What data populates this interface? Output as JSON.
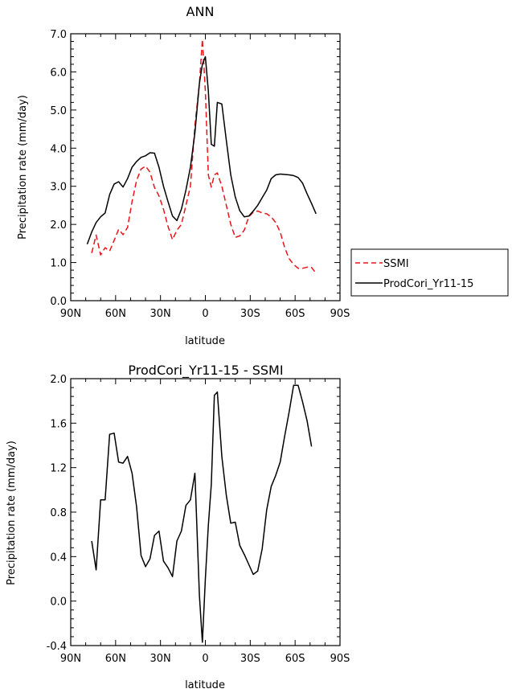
{
  "chart_data": [
    {
      "type": "line",
      "title": "ANN",
      "xlabel": "latitude",
      "ylabel": "Precipitation rate (mm/day)",
      "xlim": [
        90,
        -90
      ],
      "ylim": [
        0,
        7
      ],
      "x_ticks": [
        90,
        60,
        30,
        0,
        -30,
        -60,
        -90
      ],
      "x_tick_labels": [
        "90N",
        "60N",
        "30N",
        "0",
        "30S",
        "60S",
        "90S"
      ],
      "y_ticks": [
        0,
        1,
        2,
        3,
        4,
        5,
        6,
        7
      ],
      "y_tick_labels": [
        "0.0",
        "1.0",
        "2.0",
        "3.0",
        "4.0",
        "5.0",
        "6.0",
        "7.0"
      ],
      "grid": false,
      "legend": "right",
      "series": [
        {
          "name": "SSMI",
          "color": "#e8141a",
          "dash": "dashed",
          "points": [
            [
              76,
              1.25
            ],
            [
              73,
              1.72
            ],
            [
              70,
              1.2
            ],
            [
              67,
              1.39
            ],
            [
              64,
              1.3
            ],
            [
              61,
              1.58
            ],
            [
              58,
              1.87
            ],
            [
              55,
              1.73
            ],
            [
              52,
              1.92
            ],
            [
              49,
              2.6
            ],
            [
              46,
              3.15
            ],
            [
              43,
              3.45
            ],
            [
              40,
              3.53
            ],
            [
              37,
              3.37
            ],
            [
              34,
              2.97
            ],
            [
              31,
              2.75
            ],
            [
              28,
              2.4
            ],
            [
              25,
              1.95
            ],
            [
              22,
              1.6
            ],
            [
              19,
              1.85
            ],
            [
              16,
              2.0
            ],
            [
              13,
              2.5
            ],
            [
              10,
              3.0
            ],
            [
              7,
              4.6
            ],
            [
              4,
              5.7
            ],
            [
              2,
              6.85
            ],
            [
              0,
              5.5
            ],
            [
              -2,
              3.3
            ],
            [
              -4,
              2.98
            ],
            [
              -6,
              3.3
            ],
            [
              -8,
              3.35
            ],
            [
              -11,
              3.0
            ],
            [
              -14,
              2.5
            ],
            [
              -17,
              2.0
            ],
            [
              -20,
              1.66
            ],
            [
              -23,
              1.7
            ],
            [
              -26,
              1.85
            ],
            [
              -29,
              2.2
            ],
            [
              -32,
              2.32
            ],
            [
              -35,
              2.35
            ],
            [
              -38,
              2.3
            ],
            [
              -41,
              2.28
            ],
            [
              -44,
              2.2
            ],
            [
              -47,
              2.05
            ],
            [
              -50,
              1.8
            ],
            [
              -53,
              1.4
            ],
            [
              -56,
              1.1
            ],
            [
              -59,
              0.95
            ],
            [
              -62,
              0.85
            ],
            [
              -65,
              0.85
            ],
            [
              -68,
              0.88
            ],
            [
              -71,
              0.87
            ],
            [
              -74,
              0.72
            ]
          ]
        },
        {
          "name": "ProdCori_Yr11-15",
          "color": "#000000",
          "dash": "solid",
          "points": [
            [
              79,
              1.48
            ],
            [
              76,
              1.8
            ],
            [
              73,
              2.05
            ],
            [
              70,
              2.2
            ],
            [
              67,
              2.3
            ],
            [
              64,
              2.78
            ],
            [
              61,
              3.06
            ],
            [
              58,
              3.12
            ],
            [
              55,
              2.98
            ],
            [
              52,
              3.2
            ],
            [
              49,
              3.5
            ],
            [
              46,
              3.65
            ],
            [
              43,
              3.76
            ],
            [
              40,
              3.8
            ],
            [
              37,
              3.88
            ],
            [
              34,
              3.87
            ],
            [
              31,
              3.5
            ],
            [
              28,
              3.0
            ],
            [
              25,
              2.6
            ],
            [
              22,
              2.22
            ],
            [
              19,
              2.1
            ],
            [
              16,
              2.4
            ],
            [
              13,
              2.9
            ],
            [
              10,
              3.5
            ],
            [
              7,
              4.4
            ],
            [
              4,
              5.7
            ],
            [
              2,
              6.2
            ],
            [
              0,
              6.4
            ],
            [
              -2,
              5.5
            ],
            [
              -4,
              4.1
            ],
            [
              -6,
              4.05
            ],
            [
              -8,
              5.2
            ],
            [
              -11,
              5.16
            ],
            [
              -14,
              4.2
            ],
            [
              -17,
              3.3
            ],
            [
              -20,
              2.72
            ],
            [
              -23,
              2.36
            ],
            [
              -26,
              2.2
            ],
            [
              -29,
              2.22
            ],
            [
              -32,
              2.35
            ],
            [
              -35,
              2.5
            ],
            [
              -38,
              2.7
            ],
            [
              -41,
              2.9
            ],
            [
              -44,
              3.2
            ],
            [
              -47,
              3.3
            ],
            [
              -50,
              3.32
            ],
            [
              -53,
              3.31
            ],
            [
              -56,
              3.3
            ],
            [
              -59,
              3.28
            ],
            [
              -62,
              3.23
            ],
            [
              -65,
              3.08
            ],
            [
              -68,
              2.8
            ],
            [
              -71,
              2.55
            ],
            [
              -74,
              2.28
            ]
          ]
        }
      ]
    },
    {
      "type": "line",
      "title": "ProdCori_Yr11-15 - SSMI",
      "xlabel": "latitude",
      "ylabel": "Precipitation rate (mm/day)",
      "xlim": [
        90,
        -90
      ],
      "ylim": [
        -0.4,
        2.0
      ],
      "x_ticks": [
        90,
        60,
        30,
        0,
        -30,
        -60,
        -90
      ],
      "x_tick_labels": [
        "90N",
        "60N",
        "30N",
        "0",
        "30S",
        "60S",
        "90S"
      ],
      "y_ticks": [
        -0.4,
        0.0,
        0.4,
        0.8,
        1.2,
        1.6,
        2.0
      ],
      "y_tick_labels": [
        "-0.4",
        "0.0",
        "0.4",
        "0.8",
        "1.2",
        "1.6",
        "2.0"
      ],
      "grid": false,
      "series": [
        {
          "color": "#000000",
          "dash": "solid",
          "points": [
            [
              76,
              0.54
            ],
            [
              73,
              0.28
            ],
            [
              70,
              0.91
            ],
            [
              67,
              0.91
            ],
            [
              64,
              1.5
            ],
            [
              61,
              1.51
            ],
            [
              58,
              1.25
            ],
            [
              55,
              1.24
            ],
            [
              52,
              1.3
            ],
            [
              49,
              1.15
            ],
            [
              46,
              0.85
            ],
            [
              43,
              0.41
            ],
            [
              40,
              0.31
            ],
            [
              37,
              0.38
            ],
            [
              34,
              0.59
            ],
            [
              31,
              0.63
            ],
            [
              28,
              0.36
            ],
            [
              25,
              0.3
            ],
            [
              22,
              0.22
            ],
            [
              19,
              0.54
            ],
            [
              16,
              0.63
            ],
            [
              13,
              0.86
            ],
            [
              10,
              0.91
            ],
            [
              7,
              1.15
            ],
            [
              4,
              0.05
            ],
            [
              2,
              -0.37
            ],
            [
              0,
              0.2
            ],
            [
              -2,
              0.68
            ],
            [
              -4,
              1.05
            ],
            [
              -6,
              1.85
            ],
            [
              -8,
              1.88
            ],
            [
              -11,
              1.3
            ],
            [
              -14,
              0.95
            ],
            [
              -17,
              0.7
            ],
            [
              -20,
              0.71
            ],
            [
              -23,
              0.5
            ],
            [
              -26,
              0.42
            ],
            [
              -29,
              0.33
            ],
            [
              -32,
              0.24
            ],
            [
              -35,
              0.27
            ],
            [
              -38,
              0.47
            ],
            [
              -41,
              0.82
            ],
            [
              -44,
              1.03
            ],
            [
              -47,
              1.13
            ],
            [
              -50,
              1.25
            ],
            [
              -53,
              1.48
            ],
            [
              -56,
              1.7
            ],
            [
              -59,
              1.94
            ],
            [
              -62,
              1.94
            ],
            [
              -65,
              1.79
            ],
            [
              -68,
              1.62
            ],
            [
              -71,
              1.39
            ]
          ]
        }
      ]
    }
  ]
}
